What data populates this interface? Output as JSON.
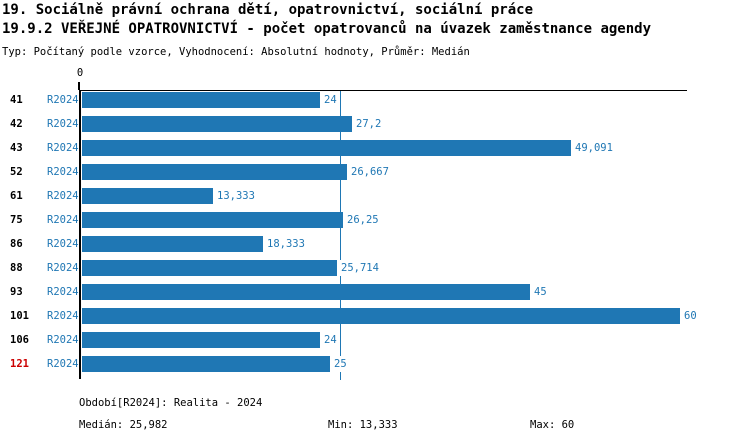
{
  "header": {
    "title_line1": "19. Sociálně právní ochrana dětí, opatrovnictví, sociální práce",
    "title_line2": "19.9.2 VEŘEJNÉ OPATROVNICTVÍ - počet opatrovanců na úvazek zaměstnance agendy",
    "subtitle": "Typ: Počítaný podle vzorce, Vyhodnocení: Absolutní hodnoty, Průměr: Medián"
  },
  "colors": {
    "bar_blue": "#1f77b4",
    "text_blue": "#1f77b4",
    "axis_black": "#000000",
    "highlight_red": "#cc0000",
    "background": "#ffffff"
  },
  "chart_data": {
    "type": "bar",
    "orientation": "horizontal",
    "title": "19.9.2 VEŘEJNÉ OPATROVNICTVÍ - počet opatrovanců na úvazek zaměstnance agendy",
    "axis_zero_label": "0",
    "x_axis_start": 0,
    "x_axis_max": 60.7,
    "grid": false,
    "median_reference_value": 25.982,
    "categories": [
      "41",
      "42",
      "43",
      "52",
      "61",
      "75",
      "86",
      "88",
      "93",
      "101",
      "106",
      "121"
    ],
    "rows": [
      {
        "id": "41",
        "period": "R2024",
        "value": 24,
        "value_label": "24",
        "highlight": false
      },
      {
        "id": "42",
        "period": "R2024",
        "value": 27.2,
        "value_label": "27,2",
        "highlight": false
      },
      {
        "id": "43",
        "period": "R2024",
        "value": 49.091,
        "value_label": "49,091",
        "highlight": false
      },
      {
        "id": "52",
        "period": "R2024",
        "value": 26.667,
        "value_label": "26,667",
        "highlight": false
      },
      {
        "id": "61",
        "period": "R2024",
        "value": 13.333,
        "value_label": "13,333",
        "highlight": false
      },
      {
        "id": "75",
        "period": "R2024",
        "value": 26.25,
        "value_label": "26,25",
        "highlight": false
      },
      {
        "id": "86",
        "period": "R2024",
        "value": 18.333,
        "value_label": "18,333",
        "highlight": false
      },
      {
        "id": "88",
        "period": "R2024",
        "value": 25.714,
        "value_label": "25,714",
        "highlight": false
      },
      {
        "id": "93",
        "period": "R2024",
        "value": 45,
        "value_label": "45",
        "highlight": false
      },
      {
        "id": "101",
        "period": "R2024",
        "value": 60,
        "value_label": "60",
        "highlight": false
      },
      {
        "id": "106",
        "period": "R2024",
        "value": 24,
        "value_label": "24",
        "highlight": false
      },
      {
        "id": "121",
        "period": "R2024",
        "value": 25,
        "value_label": "25",
        "highlight": true
      }
    ]
  },
  "footer": {
    "period_info": "Období[R2024]: Realita - 2024",
    "median": "Medián: 25,982",
    "min": "Min: 13,333",
    "max": "Max: 60"
  }
}
